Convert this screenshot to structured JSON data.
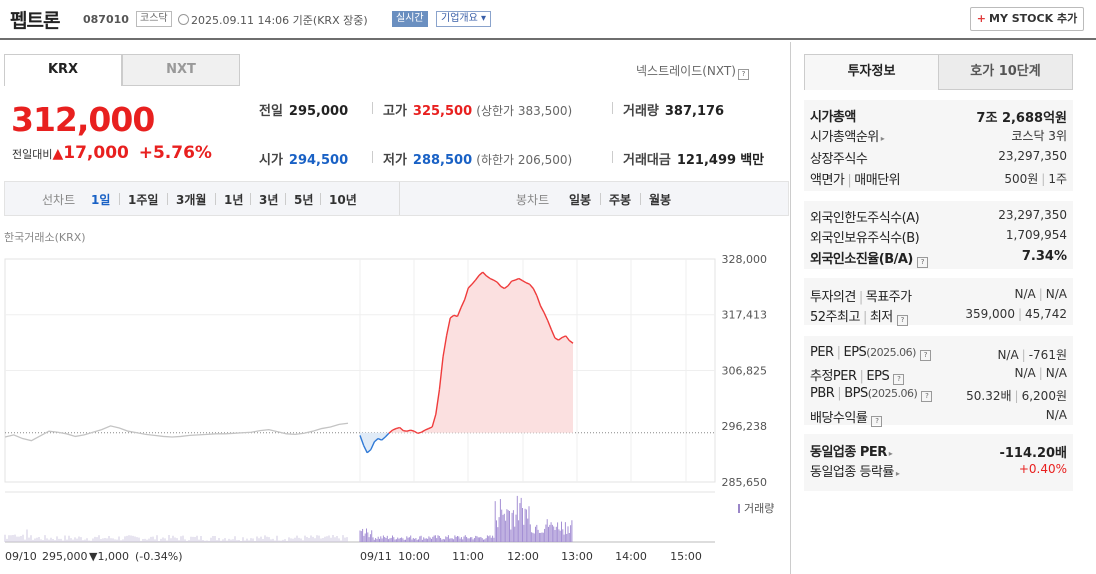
{
  "header": {
    "name": "펩트론",
    "code": "087010",
    "market": "코스닥",
    "as_of": "2025.09.11 14:06  기준(KRX 장중)",
    "realtime": "실시간",
    "corp_info": "기업개요 ▾",
    "my_stock": "MY STOCK 추가",
    "my_stock_plus": "+"
  },
  "exchange_tabs": [
    "KRX",
    "NXT"
  ],
  "nxt_link": "넥스트레이드(NXT)",
  "quote": {
    "price": "312,000",
    "change_label": "전일대비",
    "change_arrow": "▲",
    "change": "17,000",
    "change_pct": "+5.76%"
  },
  "stats": {
    "prev_close_label": "전일",
    "prev_close": "295,000",
    "high_label": "고가",
    "high": "325,500",
    "upper_limit": "(상한가 383,500)",
    "volume_label": "거래량",
    "volume": "387,176",
    "open_label": "시가",
    "open": "294,500",
    "low_label": "저가",
    "low": "288,500",
    "lower_limit": "(하한가 206,500)",
    "amount_label": "거래대금",
    "amount": "121,499",
    "amount_unit": "백만"
  },
  "period_bar": {
    "line_label": "선차트",
    "line_periods": [
      "1일",
      "1주일",
      "3개월",
      "1년",
      "3년",
      "5년",
      "10년"
    ],
    "active": "1일",
    "candle_label": "봉차트",
    "candle_periods": [
      "일봉",
      "주봉",
      "월봉"
    ]
  },
  "chart_source": "한국거래소(KRX)",
  "chart_data": {
    "type": "line",
    "y_ticks": [
      "328,000",
      "317,413",
      "306,825",
      "296,238",
      "285,650"
    ],
    "ylim": [
      285650,
      328000
    ],
    "x_labels": [
      "09/11",
      "10:00",
      "11:00",
      "12:00",
      "13:00",
      "14:00",
      "15:00"
    ],
    "prev_day_label": "09/10",
    "prev_day_close": "295,000",
    "prev_day_change": "▼1,000",
    "prev_day_pct": "(-0.34%)",
    "volume_legend": "거래량",
    "baseline": 295000,
    "prev_day_series": [
      294200,
      294600,
      293900,
      293500,
      294400,
      295300,
      295100,
      294800,
      294300,
      294600,
      295100,
      295600,
      296300,
      295900,
      295300,
      295000,
      294700,
      294500,
      294300,
      294200,
      294300,
      294500,
      294600,
      294700,
      294800,
      294800,
      294900,
      295000,
      295100,
      295400,
      295600,
      295200,
      294800,
      294700,
      294900,
      295300,
      295800,
      296100,
      296600,
      296800
    ],
    "today_series": [
      294500,
      292600,
      291200,
      291800,
      293300,
      293900,
      293600,
      294200,
      294900,
      295500,
      295800,
      296000,
      295400,
      295300,
      295500,
      295300,
      294900,
      295100,
      295500,
      295800,
      296100,
      298500,
      303200,
      309400,
      313500,
      316800,
      317300,
      317100,
      318800,
      320300,
      322500,
      323200,
      324000,
      324900,
      325500,
      324800,
      324300,
      324000,
      323600,
      322800,
      322400,
      322900,
      323800,
      324000,
      324300,
      323900,
      323500,
      323200,
      322400,
      321000,
      319100,
      317800,
      316300,
      314600,
      313000,
      312600,
      313100,
      313400,
      312500,
      312000
    ],
    "today_fraction_of_session": 0.6
  },
  "right_panel": {
    "tabs": [
      "투자정보",
      "호가 10단계"
    ],
    "rows": [
      {
        "k": "시가총액",
        "v": "7조 2,688억원"
      },
      {
        "k": "시가총액순위",
        "v": "코스닥 3위"
      },
      {
        "k": "상장주식수",
        "v": "23,297,350"
      },
      {
        "k": "액면가",
        "k2": "매매단위",
        "v": "500원",
        "v2": "1주"
      },
      {
        "k": "외국인한도주식수(A)",
        "v": "23,297,350"
      },
      {
        "k": "외국인보유주식수(B)",
        "v": "1,709,954"
      },
      {
        "k": "외국인소진율(B/A)",
        "v": "7.34%"
      },
      {
        "k": "투자의견",
        "k2": "목표주가",
        "v": "N/A",
        "v2": "N/A"
      },
      {
        "k": "52주최고",
        "k2": "최저",
        "v": "359,000",
        "v2": "45,742"
      },
      {
        "k": "PER",
        "k2": "EPS",
        "k2s": "(2025.06)",
        "v": "N/A",
        "v2": "-761원"
      },
      {
        "k": "추정PER",
        "k2": "EPS",
        "v": "N/A",
        "v2": "N/A"
      },
      {
        "k": "PBR",
        "k2": "BPS",
        "k2s": "(2025.06)",
        "v": "50.32배",
        "v2": "6,200원"
      },
      {
        "k": "배당수익률",
        "v": "N/A"
      },
      {
        "k": "동일업종 PER",
        "v": "-114.20배"
      },
      {
        "k": "동일업종 등락률",
        "v": "+0.40%"
      }
    ]
  }
}
